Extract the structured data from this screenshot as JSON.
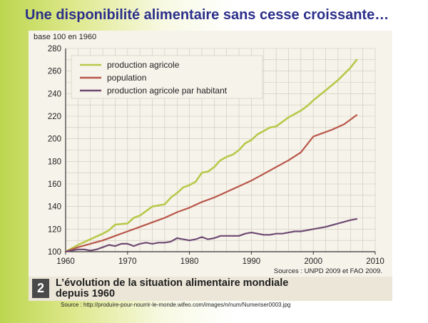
{
  "slide": {
    "title": "Une disponibilité alimentaire sans cesse croissante…",
    "source": "Source : http://produire-pour-nourrir-le-monde.wifeo.com/images/n/num/Numeriser0003.jpg"
  },
  "caption": {
    "number": "2",
    "line1": "L’évolution de la situation alimentaire mondiale",
    "line2": "depuis 1960"
  },
  "chart_data": {
    "type": "line",
    "title": "",
    "ylabel": "base 100 en 1960",
    "xlabel": "",
    "xlim": [
      1960,
      2010
    ],
    "ylim": [
      100,
      280
    ],
    "x_ticks": [
      "1960",
      "1970",
      "1980",
      "1990",
      "2000",
      "2010"
    ],
    "y_ticks": [
      "100",
      "120",
      "140",
      "160",
      "180",
      "200",
      "220",
      "240",
      "260",
      "280"
    ],
    "grid": true,
    "legend_position": "top-left",
    "annotation": "Sources : UNPD 2009 et FAO 2009.",
    "series": [
      {
        "name": "production agricole",
        "color": "#b7c94a",
        "points": [
          [
            1960,
            100
          ],
          [
            1962,
            106
          ],
          [
            1964,
            111
          ],
          [
            1966,
            116
          ],
          [
            1967,
            119
          ],
          [
            1968,
            124
          ],
          [
            1970,
            125
          ],
          [
            1971,
            130
          ],
          [
            1972,
            132
          ],
          [
            1974,
            140
          ],
          [
            1976,
            142
          ],
          [
            1977,
            148
          ],
          [
            1978,
            152
          ],
          [
            1979,
            157
          ],
          [
            1980,
            159
          ],
          [
            1981,
            162
          ],
          [
            1982,
            170
          ],
          [
            1983,
            171
          ],
          [
            1984,
            175
          ],
          [
            1985,
            181
          ],
          [
            1986,
            184
          ],
          [
            1987,
            186
          ],
          [
            1988,
            190
          ],
          [
            1989,
            196
          ],
          [
            1990,
            199
          ],
          [
            1991,
            204
          ],
          [
            1992,
            207
          ],
          [
            1993,
            210
          ],
          [
            1994,
            211
          ],
          [
            1995,
            215
          ],
          [
            1996,
            219
          ],
          [
            1997,
            222
          ],
          [
            1998,
            225
          ],
          [
            1999,
            229
          ],
          [
            2000,
            234
          ],
          [
            2002,
            243
          ],
          [
            2004,
            252
          ],
          [
            2006,
            263
          ],
          [
            2007,
            270
          ]
        ]
      },
      {
        "name": "population",
        "color": "#b8564a",
        "points": [
          [
            1960,
            100
          ],
          [
            1962,
            104
          ],
          [
            1964,
            107
          ],
          [
            1966,
            110
          ],
          [
            1968,
            114
          ],
          [
            1970,
            118
          ],
          [
            1972,
            122
          ],
          [
            1974,
            126
          ],
          [
            1976,
            130
          ],
          [
            1978,
            135
          ],
          [
            1980,
            139
          ],
          [
            1982,
            144
          ],
          [
            1984,
            148
          ],
          [
            1986,
            153
          ],
          [
            1988,
            158
          ],
          [
            1990,
            163
          ],
          [
            1992,
            169
          ],
          [
            1994,
            175
          ],
          [
            1996,
            181
          ],
          [
            1998,
            188
          ],
          [
            2000,
            202
          ],
          [
            2001,
            204
          ],
          [
            2003,
            208
          ],
          [
            2005,
            213
          ],
          [
            2007,
            221
          ]
        ]
      },
      {
        "name": "production agricole par habitant",
        "color": "#6e4a73",
        "points": [
          [
            1960,
            100
          ],
          [
            1961,
            101
          ],
          [
            1962,
            102
          ],
          [
            1963,
            102
          ],
          [
            1964,
            101
          ],
          [
            1965,
            102
          ],
          [
            1966,
            104
          ],
          [
            1967,
            106
          ],
          [
            1968,
            105
          ],
          [
            1969,
            107
          ],
          [
            1970,
            107
          ],
          [
            1971,
            105
          ],
          [
            1972,
            107
          ],
          [
            1973,
            108
          ],
          [
            1974,
            107
          ],
          [
            1975,
            108
          ],
          [
            1976,
            108
          ],
          [
            1977,
            109
          ],
          [
            1978,
            112
          ],
          [
            1979,
            111
          ],
          [
            1980,
            110
          ],
          [
            1981,
            111
          ],
          [
            1982,
            113
          ],
          [
            1983,
            111
          ],
          [
            1984,
            112
          ],
          [
            1985,
            114
          ],
          [
            1986,
            114
          ],
          [
            1987,
            114
          ],
          [
            1988,
            114
          ],
          [
            1989,
            116
          ],
          [
            1990,
            117
          ],
          [
            1991,
            116
          ],
          [
            1992,
            115
          ],
          [
            1993,
            115
          ],
          [
            1994,
            116
          ],
          [
            1995,
            116
          ],
          [
            1996,
            117
          ],
          [
            1997,
            118
          ],
          [
            1998,
            118
          ],
          [
            1999,
            119
          ],
          [
            2000,
            120
          ],
          [
            2002,
            122
          ],
          [
            2004,
            125
          ],
          [
            2006,
            128
          ],
          [
            2007,
            129
          ]
        ]
      }
    ]
  }
}
